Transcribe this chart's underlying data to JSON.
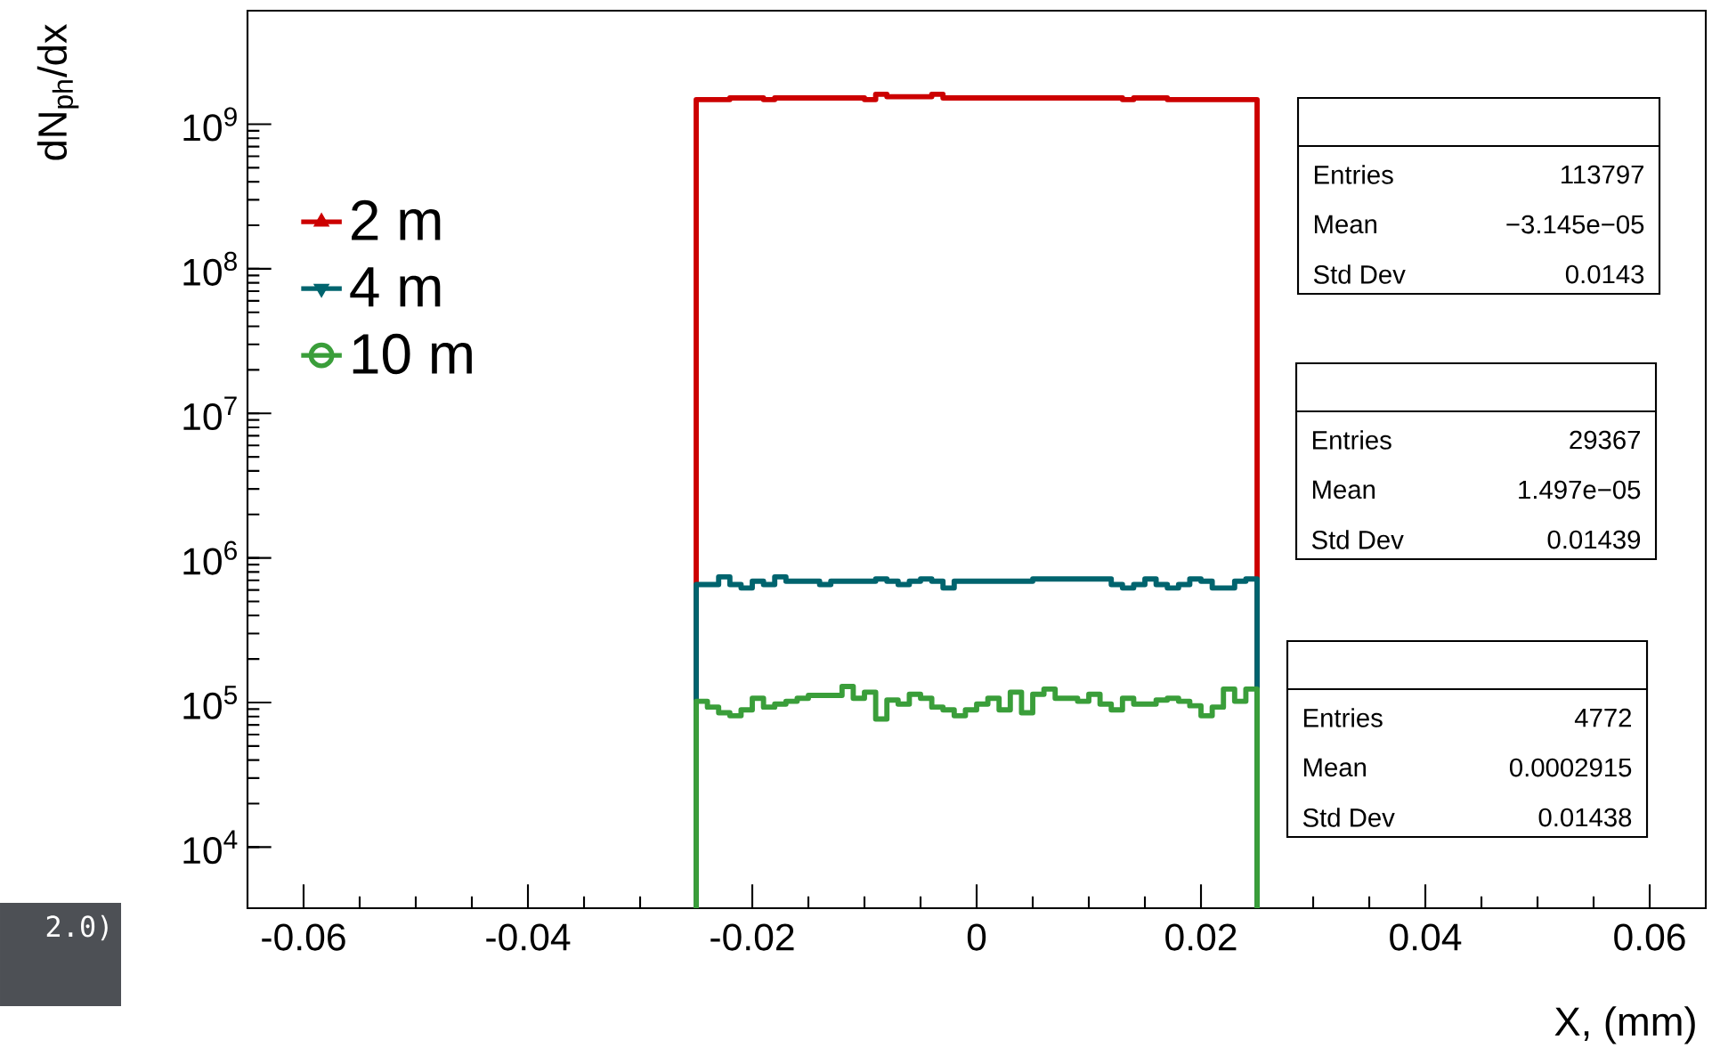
{
  "chart_data": {
    "type": "histogram",
    "xlabel": "X, (mm)",
    "ylabel": "dN$_{ph}$/dx",
    "bins": [
      -0.025,
      -0.024,
      -0.023,
      -0.022,
      -0.021,
      -0.02,
      -0.019,
      -0.018,
      -0.017,
      -0.016,
      -0.015,
      -0.014,
      -0.013,
      -0.012,
      -0.011,
      -0.01,
      -0.009,
      -0.008,
      -0.007,
      -0.006,
      -0.005,
      -0.004,
      -0.003,
      -0.002,
      -0.001,
      0,
      0.001,
      0.002,
      0.003,
      0.004,
      0.005,
      0.006,
      0.007,
      0.008,
      0.009,
      0.01,
      0.011,
      0.012,
      0.013,
      0.014,
      0.015,
      0.016,
      0.017,
      0.018,
      0.019,
      0.02,
      0.021,
      0.022,
      0.023,
      0.024,
      0.025
    ],
    "series": [
      {
        "name": "2 m",
        "color": "#cc0000",
        "marker": "triangle",
        "values": [
          1480000000.0,
          1480000000.0,
          1480000000.0,
          1520000000.0,
          1520000000.0,
          1520000000.0,
          1480000000.0,
          1520000000.0,
          1520000000.0,
          1520000000.0,
          1520000000.0,
          1520000000.0,
          1520000000.0,
          1520000000.0,
          1520000000.0,
          1480000000.0,
          1610000000.0,
          1550000000.0,
          1550000000.0,
          1550000000.0,
          1550000000.0,
          1610000000.0,
          1520000000.0,
          1520000000.0,
          1520000000.0,
          1520000000.0,
          1520000000.0,
          1520000000.0,
          1520000000.0,
          1520000000.0,
          1520000000.0,
          1520000000.0,
          1520000000.0,
          1520000000.0,
          1520000000.0,
          1520000000.0,
          1520000000.0,
          1520000000.0,
          1480000000.0,
          1520000000.0,
          1520000000.0,
          1520000000.0,
          1480000000.0,
          1480000000.0,
          1480000000.0,
          1480000000.0,
          1480000000.0,
          1480000000.0,
          1480000000.0,
          1480000000.0
        ]
      },
      {
        "name": "4 m",
        "color": "#00646e",
        "marker": "triangle-down",
        "values": [
          655000.0,
          655000.0,
          740000.0,
          655000.0,
          620000.0,
          690000.0,
          655000.0,
          740000.0,
          690000.0,
          690000.0,
          690000.0,
          655000.0,
          690000.0,
          690000.0,
          690000.0,
          690000.0,
          715000.0,
          690000.0,
          655000.0,
          690000.0,
          715000.0,
          690000.0,
          620000.0,
          690000.0,
          690000.0,
          690000.0,
          690000.0,
          690000.0,
          690000.0,
          690000.0,
          715000.0,
          715000.0,
          715000.0,
          715000.0,
          715000.0,
          715000.0,
          715000.0,
          655000.0,
          620000.0,
          655000.0,
          715000.0,
          655000.0,
          620000.0,
          655000.0,
          715000.0,
          690000.0,
          620000.0,
          620000.0,
          690000.0,
          715000.0
        ]
      },
      {
        "name": "10 m",
        "color": "#3a9e3a",
        "marker": "circle",
        "values": [
          102000.0,
          93000.0,
          85000.0,
          81000.0,
          89000.0,
          107000.0,
          93000.0,
          97500.0,
          102000.0,
          107000.0,
          112000.0,
          112000.0,
          112000.0,
          129000.0,
          107000.0,
          118000.0,
          77000.0,
          104000.0,
          97500.0,
          114000.0,
          107000.0,
          93000.0,
          89000.0,
          81000.0,
          89000.0,
          97500.0,
          107000.0,
          89000.0,
          118000.0,
          85000.0,
          114000.0,
          124000.0,
          107000.0,
          107000.0,
          102000.0,
          114000.0,
          97500.0,
          89000.0,
          107000.0,
          97500.0,
          97500.0,
          104000.0,
          107000.0,
          102000.0,
          95000.0,
          81000.0,
          93000.0,
          124000.0,
          102000.0,
          124000.0
        ]
      }
    ],
    "xlim": [
      -0.065,
      0.065
    ],
    "xticks": [
      -0.06,
      -0.04,
      -0.02,
      0,
      0.02,
      0.04,
      0.06
    ],
    "ylim": [
      3780,
      6100000000.0
    ],
    "log": "y",
    "yticks": [
      {
        "value": 10000.0,
        "label": "10$^{4}$"
      },
      {
        "value": 100000.0,
        "label": "10$^{5}$"
      },
      {
        "value": 1000000.0,
        "label": "10$^{6}$"
      },
      {
        "value": 10000000.0,
        "label": "10$^{7}$"
      },
      {
        "value": 100000000.0,
        "label": "10$^{8}$"
      },
      {
        "value": 1000000000.0,
        "label": "10$^{9}$"
      }
    ],
    "legend": "top left",
    "grid": false,
    "annotations": [
      "Entries",
      "113797",
      "Mean",
      "−3.145e−05",
      "Std Dev",
      "0.0143",
      "Entries",
      "29367",
      "Mean",
      "1.497e−05",
      "Std Dev",
      "0.01439",
      "Entries",
      "4772",
      "Mean",
      "0.0002915",
      "Std Dev",
      "0.01438",
      "2.0)"
    ]
  }
}
